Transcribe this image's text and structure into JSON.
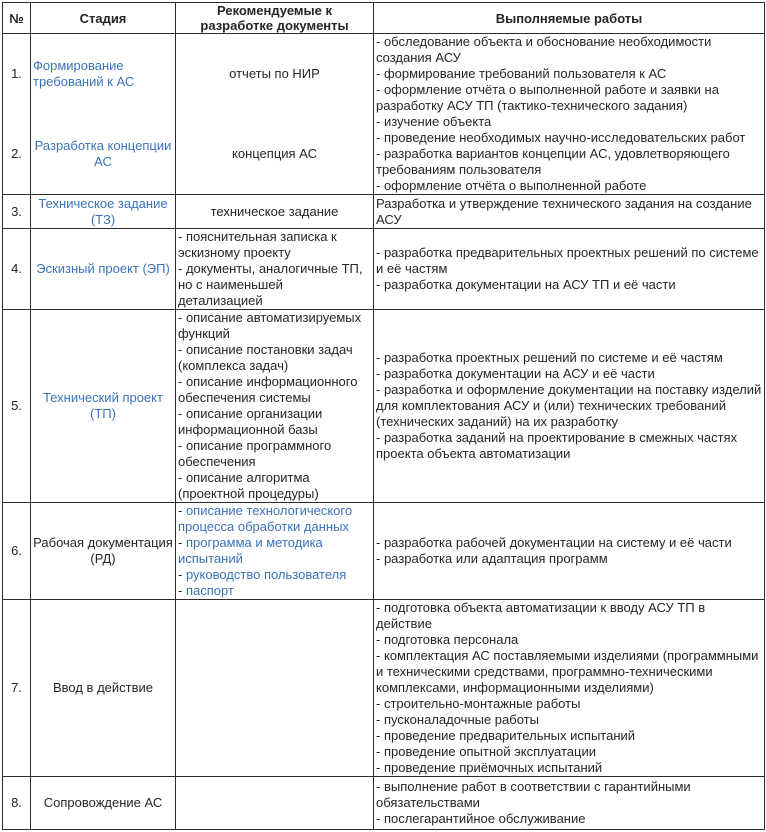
{
  "meta": {
    "bullet_prefix": "- "
  },
  "colors": {
    "link_blue": "#3a73ba",
    "border": "#2b2b2b",
    "text": "#262626"
  },
  "header": {
    "num": "№",
    "stage": "Стадия",
    "docs": "Рекомендуемые к разработке документы",
    "works": "Выполняемые работы"
  },
  "rows": {
    "r1": {
      "num": "1.",
      "stage": "Формирование требований к АС",
      "docs_single": "отчеты по НИР"
    },
    "r2": {
      "num": "2.",
      "stage": "Разработка концепции АС",
      "docs_single": "концепция АС"
    },
    "works_1_2": [
      "обследование объекта и обоснование необходимости создания АСУ",
      "формирование требований пользователя к АС",
      "оформление отчёта о выполненной работе и заявки на разработку АСУ ТП (тактико-технического задания)",
      "изучение объекта",
      "проведение необходимых научно-исследовательских работ",
      "разработка вариантов концепции АС, удовлетворяющего требованиям пользователя",
      "оформление отчёта о выполненной работе"
    ],
    "r3": {
      "num": "3.",
      "stage": "Техническое задание (ТЗ)",
      "docs_single": "техническое задание",
      "works_single": "Разработка и утверждение технического задания на создание АСУ"
    },
    "r4": {
      "num": "4.",
      "stage": "Эскизный проект (ЭП)",
      "docs": [
        "пояснительная записка к эскизному проекту",
        "документы, аналогичные ТП, но с наименьшей детализацией"
      ],
      "works": [
        "разработка предварительных проектных решений по системе и её частям",
        "разработка документации на АСУ ТП и её части"
      ]
    },
    "r5": {
      "num": "5.",
      "stage": "Технический проект (ТП)",
      "docs": [
        "описание автоматизируемых функций",
        "описание постановки задач (комплекса задач)",
        "описание информационного обеспечения системы",
        "описание организации информационной базы",
        "описание программного обеспечения",
        "описание алгоритма (проектной процедуры)"
      ],
      "works": [
        "разработка проектных решений по системе и её частям",
        "разработка документации на АСУ и её части",
        "разработка и оформление документации на поставку изделий для комплектования АСУ и (или) технических требований (технических заданий) на их разработку",
        "разработка заданий на проектирование в смежных частях проекта объекта автоматизации"
      ]
    },
    "r6": {
      "num": "6.",
      "stage": "Рабочая документация (РД)",
      "docs": [
        "описание технологического процесса обработки данных",
        "программа и методика испытаний",
        "руководство пользователя",
        "паспорт"
      ],
      "works": [
        "разработка рабочей документации на систему и её части",
        "разработка или адаптация программ"
      ]
    },
    "r7": {
      "num": "7.",
      "stage": "Ввод в действие",
      "works": [
        "подготовка объекта автоматизации к вводу АСУ ТП в действие",
        "подготовка персонала",
        "комплектация АС поставляемыми изделиями (программными и техническими средствами, программно-техническими комплексами, информационными изделиями)",
        "строительно-монтажные работы",
        "пусконаладочные работы",
        "проведение предварительных испытаний",
        "проведение опытной эксплуатации",
        "проведение приёмочных испытаний"
      ]
    },
    "r8": {
      "num": "8.",
      "stage": "Сопровождение АС",
      "works": [
        "выполнение работ в соответствии с гарантийными обязательствами",
        "послегарантийное обслуживание"
      ]
    }
  }
}
